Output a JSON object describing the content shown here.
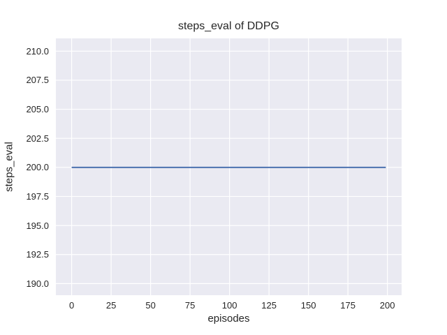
{
  "figure": {
    "background": "#ffffff"
  },
  "chart_data": {
    "type": "line",
    "title": "steps_eval of DDPG",
    "xlabel": "episodes",
    "ylabel": "steps_eval",
    "xlim": [
      -10,
      209
    ],
    "ylim": [
      189,
      211.1
    ],
    "grid": true,
    "legend": null,
    "xticks": {
      "values": [
        0,
        25,
        50,
        75,
        100,
        125,
        150,
        175,
        200
      ],
      "labels": [
        "0",
        "25",
        "50",
        "75",
        "100",
        "125",
        "150",
        "175",
        "200"
      ]
    },
    "yticks": {
      "values": [
        190,
        192.5,
        195,
        197.5,
        200,
        202.5,
        205,
        207.5,
        210
      ],
      "labels": [
        "190.0",
        "192.5",
        "195.0",
        "197.5",
        "200.0",
        "202.5",
        "205.0",
        "207.5",
        "210.0"
      ]
    },
    "series": [
      {
        "name": "DDPG steps_eval",
        "color": "#4C72B0",
        "points": [
          [
            0,
            200
          ],
          [
            199,
            200
          ]
        ]
      }
    ],
    "style": {
      "axes_background": "#EAEAF2",
      "grid_color": "#FFFFFF",
      "text_color": "#262626",
      "line_width": 2,
      "grid_width": 1.2
    }
  }
}
